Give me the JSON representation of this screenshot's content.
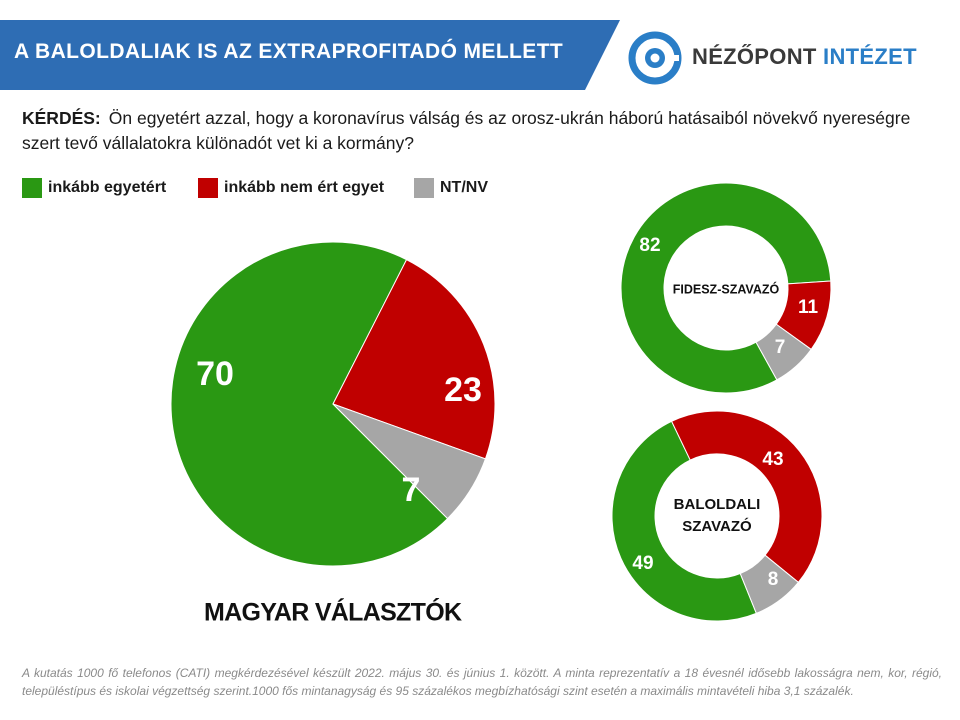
{
  "header": {
    "title": "A BALOLDALIAK IS AZ EXTRAPROFITADÓ MELLETT",
    "banner_color": "#2e6db4",
    "logo_part1": "NÉZŐPONT",
    "logo_part2": "INTÉZET",
    "logo_color": "#2a7ec7",
    "logo_icon": "nezopont-target-icon"
  },
  "question": {
    "label": "KÉRDÉS:",
    "text": "Ön egyetért azzal, hogy a koronavírus válság és az orosz-ukrán háború hatásaiból növekvő nyereségre szert tevő vállalatokra különadót vet ki a kormány?"
  },
  "legend": [
    {
      "label": "inkább egyetért",
      "color": "#2a9813"
    },
    {
      "label": "inkább nem ért egyet",
      "color": "#c00000"
    },
    {
      "label": "NT/NV",
      "color": "#a6a6a6"
    }
  ],
  "chart_data": [
    {
      "type": "pie",
      "title": "MAGYAR VÁLASZTÓK",
      "categories": [
        "inkább egyetért",
        "inkább nem ért egyet",
        "NT/NV"
      ],
      "values": [
        70,
        23,
        7
      ],
      "colors": [
        "#2a9813",
        "#c00000",
        "#a6a6a6"
      ],
      "start_angle_deg": 135
    },
    {
      "type": "pie",
      "donut": true,
      "title": "FIDESZ-SZAVAZÓ",
      "categories": [
        "inkább egyetért",
        "inkább nem ért egyet",
        "NT/NV"
      ],
      "values": [
        82,
        11,
        7
      ],
      "colors": [
        "#2a9813",
        "#c00000",
        "#a6a6a6"
      ],
      "start_angle_deg": 151
    },
    {
      "type": "pie",
      "donut": true,
      "title": "BALOLDALI SZAVAZÓ",
      "categories": [
        "inkább egyetért",
        "inkább nem ért egyet",
        "NT/NV"
      ],
      "values": [
        49,
        43,
        8
      ],
      "colors": [
        "#2a9813",
        "#c00000",
        "#a6a6a6"
      ],
      "start_angle_deg": 158
    }
  ],
  "footnote": "A kutatás 1000 fő telefonos (CATI) megkérdezésével készült 2022. május 30. és június 1. között. A minta reprezentatív a 18 évesnél idősebb lakosságra nem, kor, régió, településtípus és iskolai végzettség szerint.1000 fős mintanagyság és 95 százalékos megbízhatósági szint esetén a maximális mintavételi hiba 3,1 százalék."
}
